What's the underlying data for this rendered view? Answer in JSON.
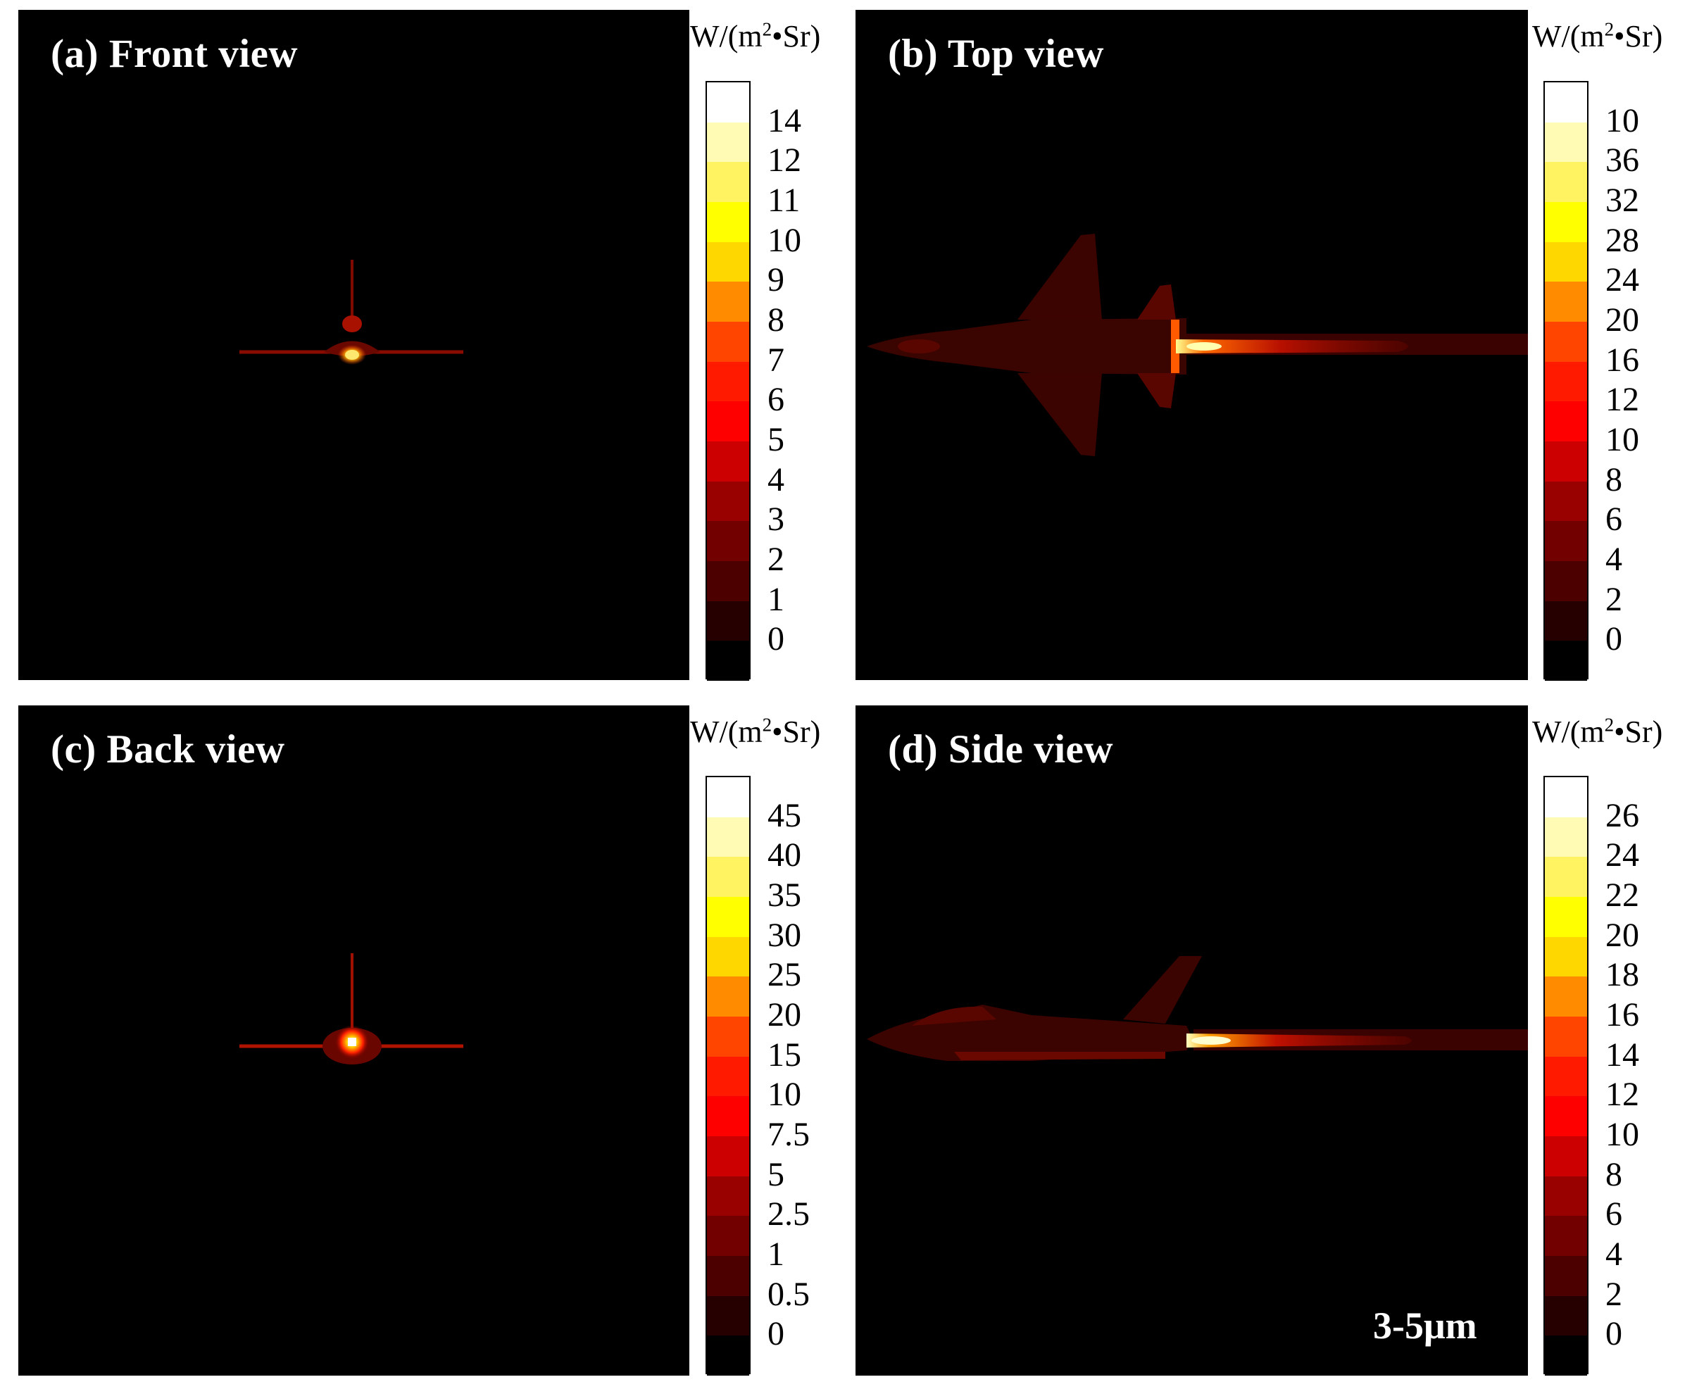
{
  "panels": {
    "a": {
      "title": "(a) Front view"
    },
    "b": {
      "title": "(b) Top view"
    },
    "c": {
      "title": "(c) Back view"
    },
    "d": {
      "title": "(d) Side view",
      "band": "3-5μm"
    }
  },
  "colorbars": {
    "a": {
      "unit_main": "W/(m",
      "unit_sup": "2",
      "unit_tail": "•Sr)",
      "ticks": [
        "14",
        "12",
        "11",
        "10",
        "9",
        "8",
        "7",
        "6",
        "5",
        "4",
        "3",
        "2",
        "1",
        "0"
      ]
    },
    "b": {
      "unit_main": "W/(m",
      "unit_sup": "2",
      "unit_tail": "•Sr)",
      "ticks": [
        "10",
        "36",
        "32",
        "28",
        "24",
        "20",
        "16",
        "12",
        "10",
        "8",
        "6",
        "4",
        "2",
        "0"
      ]
    },
    "c": {
      "unit_main": "W/(m",
      "unit_sup": "2",
      "unit_tail": "•Sr)",
      "ticks": [
        "45",
        "40",
        "35",
        "30",
        "25",
        "20",
        "15",
        "10",
        "7.5",
        "5",
        "2.5",
        "1",
        "0.5",
        "0"
      ]
    },
    "d": {
      "unit_main": "W/(m",
      "unit_sup": "2",
      "unit_tail": "•Sr)",
      "ticks": [
        "26",
        "24",
        "22",
        "20",
        "18",
        "16",
        "14",
        "12",
        "10",
        "8",
        "6",
        "4",
        "2",
        "0"
      ]
    }
  },
  "colors": {
    "palette_top_to_bottom": [
      "#ffffff",
      "#fffab4",
      "#fff361",
      "#ffff00",
      "#ffd700",
      "#ff8c00",
      "#ff4500",
      "#ff1a00",
      "#ff0000",
      "#cc0000",
      "#990000",
      "#730000",
      "#4d0000",
      "#260000",
      "#000000"
    ]
  }
}
